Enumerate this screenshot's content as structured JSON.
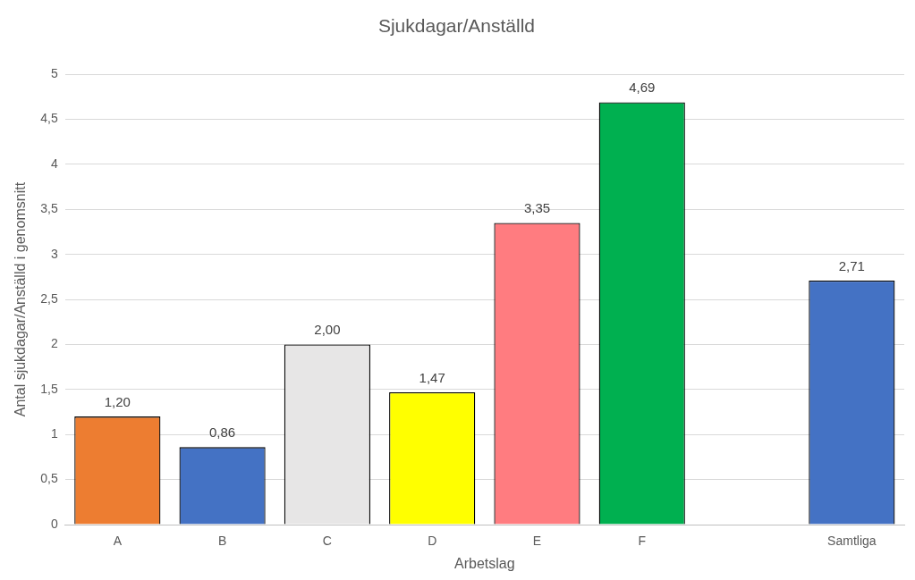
{
  "chart_data": {
    "type": "bar",
    "title": "Sjukdagar/Anställd",
    "x_label": "Arbetslag",
    "y_label": "Antal sjukdagar/Anställd i genomsnitt",
    "categories": [
      "A",
      "B",
      "C",
      "D",
      "E",
      "F",
      null,
      "Samtliga"
    ],
    "values": [
      1.2,
      0.86,
      2.0,
      1.47,
      3.35,
      4.69,
      null,
      2.71
    ],
    "value_labels": [
      "1,20",
      "0,86",
      "2,00",
      "1,47",
      "3,35",
      "4,69",
      null,
      "2,71"
    ],
    "colors": [
      "#ed7d31",
      "#4472c4",
      "#e7e6e6",
      "#ffff00",
      "#ff7c80",
      "#00b050",
      null,
      "#4472c4"
    ],
    "ylim": [
      0,
      5
    ],
    "yticks": [
      0,
      {
        "value": 0.5,
        "label": "0,5"
      },
      1,
      {
        "value": 1.5,
        "label": "1,5"
      },
      2,
      {
        "value": 2.5,
        "label": "2,5"
      },
      3,
      {
        "value": 3.5,
        "label": "3,5"
      },
      4,
      {
        "value": 4.5,
        "label": "4,5"
      },
      5
    ],
    "grid": true,
    "data_labels": true
  }
}
